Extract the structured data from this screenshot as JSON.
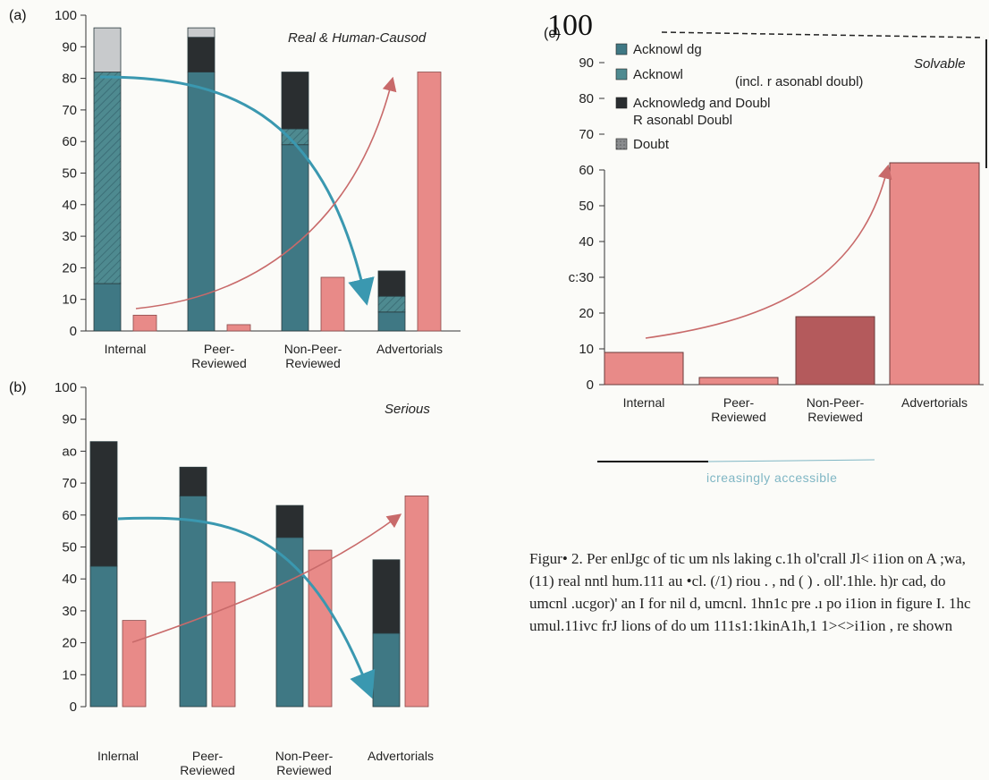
{
  "colors": {
    "acknowledged": "#3f7884",
    "acknowledged_incl": "#4e8a90",
    "acknowledged_doubt": "#2a2e30",
    "doubt": "#c8cacc",
    "salmon": "#e88a88",
    "arrow_teal": "#3a98b0",
    "arrow_red": "#c86a6a"
  },
  "chart_data": [
    {
      "type": "bar",
      "panel": "(a)",
      "title": "Real & Human-Causod",
      "categories": [
        "Internal",
        "Peer-Reviewed",
        "Non-Peer-Reviewed",
        "Advertorials"
      ],
      "category_lines": [
        [
          "Internal"
        ],
        [
          "Peer-",
          "Reviewed"
        ],
        [
          "Non-Peer-",
          "Reviewed"
        ],
        [
          "Advertorials"
        ]
      ],
      "stacked_series": [
        {
          "name": "Acknowledged",
          "values": [
            15,
            82,
            59,
            6
          ]
        },
        {
          "name": "Acknowledged (incl. reasonable doubt)",
          "values": [
            67,
            0,
            5,
            5
          ]
        },
        {
          "name": "Acknowledged and Doubt Reasonable Doubt",
          "values": [
            0,
            11,
            18,
            8
          ]
        },
        {
          "name": "Doubt",
          "values": [
            14,
            3,
            0,
            0
          ]
        }
      ],
      "cumulative_values": [
        5,
        2,
        17,
        82
      ],
      "ylim": [
        0,
        100
      ],
      "yticks": [
        "100",
        "90",
        "80",
        "70",
        "60",
        "50",
        "40",
        "30",
        "20",
        "10",
        "0"
      ]
    },
    {
      "type": "bar",
      "panel": "(b)",
      "title": "Serious",
      "categories": [
        "Inlernal",
        "Peer-Reviewed",
        "Non-Peer-Reviewed",
        "Advertorials"
      ],
      "category_lines": [
        [
          "Inlernal"
        ],
        [
          "Peer-",
          "Reviewed"
        ],
        [
          "Non-Peer-",
          "Reviewed"
        ],
        [
          "Advertorials"
        ]
      ],
      "stacked_series": [
        {
          "name": "Acknowledged",
          "values": [
            44,
            66,
            53,
            23
          ]
        },
        {
          "name": "Acknowledged and Doubt",
          "values": [
            39,
            9,
            10,
            23
          ]
        }
      ],
      "cumulative_values": [
        27,
        39,
        49,
        66
      ],
      "ylim": [
        0,
        100
      ],
      "yticks": [
        "100",
        "90",
        "ao",
        "70",
        "60",
        "50",
        "40",
        "30",
        "20",
        "10",
        "0"
      ]
    },
    {
      "type": "bar",
      "panel": "(c)",
      "title": "Solvable",
      "categories": [
        "Internal",
        "Peer-Reviewed",
        "Non-Peer-Reviewed",
        "Advertorials"
      ],
      "category_lines": [
        [
          "Internal"
        ],
        [
          "Peer-",
          "Reviewed"
        ],
        [
          "Non-Peer-",
          "Reviewed"
        ],
        [
          "Advertorials"
        ]
      ],
      "values": [
        9,
        2,
        19,
        62
      ],
      "ylim": [
        0,
        100
      ],
      "yticks": [
        "100",
        "90",
        "80",
        "70",
        "60",
        "50",
        "40",
        "30",
        "20",
        "10",
        "0"
      ],
      "ylabel_prefix": "c:",
      "legend": [
        {
          "label": "Acknowl dg",
          "color_key": "acknowledged"
        },
        {
          "label": "Acknowl",
          "extra": "(incl. r asonabl  doubl)",
          "color_key": "acknowledged_incl"
        },
        {
          "label": "Acknowledg  and Doubl",
          "line2": "R asonabl  Doubl",
          "color_key": "acknowledged_doubt"
        },
        {
          "label": "Doubt",
          "color_key": "doubt"
        }
      ],
      "footnote": "icreasingly accessible"
    }
  ],
  "caption": "Figur• 2. Per enlJgc of tic  um nls laking c.1h ol'crall Jl< i1ion on A ;wa, (11) real nntl hum.111  au •cl. (/1)  riou . , nd ( ) . oll'.1hle. h)r cad, do umcnl  .ucgor)' an I for nil d, umcnl. 1hn1c pre  .ı po i1ion in figure I. 1hc  umul.11ivc frJ  lions of do um  111s1:1kinA1h,1 1><>i1ion , re shown"
}
